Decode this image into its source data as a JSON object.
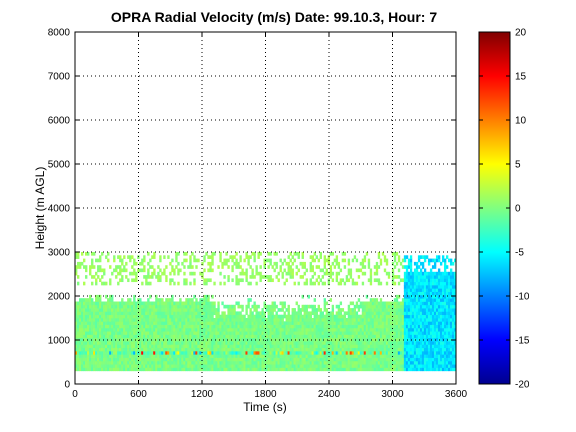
{
  "chart_data": {
    "type": "heatmap",
    "title": "OPRA Radial Velocity (m/s)  Date: 99.10.3, Hour: 7",
    "xlabel": "Time (s)",
    "ylabel": "Height (m AGL)",
    "xlim": [
      0,
      3600
    ],
    "ylim": [
      0,
      8000
    ],
    "x_ticks": [
      0,
      600,
      1200,
      1800,
      2400,
      3000,
      3600
    ],
    "y_ticks": [
      0,
      1000,
      2000,
      3000,
      4000,
      5000,
      6000,
      7000,
      8000
    ],
    "grid": true,
    "colorbar": {
      "min": -20,
      "max": 20,
      "ticks": [
        -20,
        -15,
        -10,
        -5,
        0,
        5,
        10,
        15,
        20
      ],
      "colormap": "jet"
    },
    "regions": [
      {
        "x": [
          0,
          3100
        ],
        "y": [
          300,
          2000
        ],
        "velocity": -1,
        "description_ok": false
      },
      {
        "x": [
          0,
          3600
        ],
        "y": [
          650,
          750
        ],
        "velocity": -6,
        "band": "strong-variance"
      },
      {
        "x": [
          3100,
          3600
        ],
        "y": [
          300,
          2600
        ],
        "velocity": -5
      },
      {
        "x": [
          0,
          3600
        ],
        "y": [
          2200,
          3000
        ],
        "velocity": 1,
        "sparse": true
      }
    ]
  }
}
